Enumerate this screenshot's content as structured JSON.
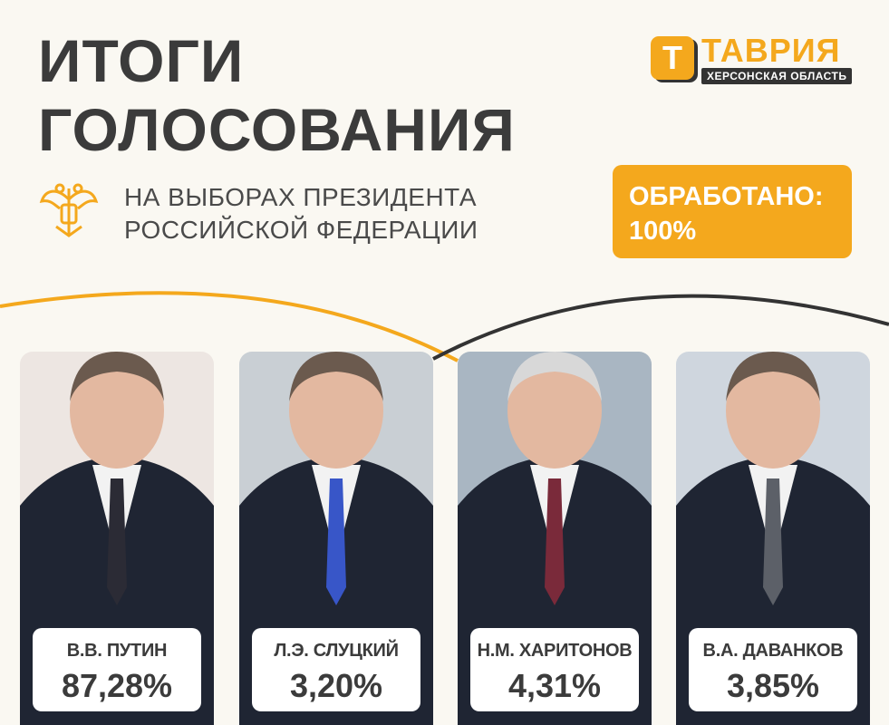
{
  "header": {
    "title_line1": "ИТОГИ",
    "title_line2": "ГОЛОСОВАНИЯ",
    "subtitle_line1": "НА ВЫБОРАХ ПРЕЗИДЕНТА",
    "subtitle_line2": "РОССИЙСКОЙ ФЕДЕРАЦИИ"
  },
  "logo": {
    "letter": "Т",
    "name": "ТАВРИЯ",
    "region": "ХЕРСОНСКАЯ ОБЛАСТЬ"
  },
  "processed": {
    "label": "ОБРАБОТАНО:",
    "value": "100%"
  },
  "colors": {
    "accent": "#f4a81d",
    "dark": "#3b3b3b",
    "background": "#faf8f2"
  },
  "candidates": [
    {
      "name": "В.В. ПУТИН",
      "percent": "87,28%"
    },
    {
      "name": "Л.Э. СЛУЦКИЙ",
      "percent": "3,20%"
    },
    {
      "name": "Н.М. ХАРИТОНОВ",
      "percent": "4,31%"
    },
    {
      "name": "В.А. ДАВАНКОВ",
      "percent": "3,85%"
    }
  ]
}
